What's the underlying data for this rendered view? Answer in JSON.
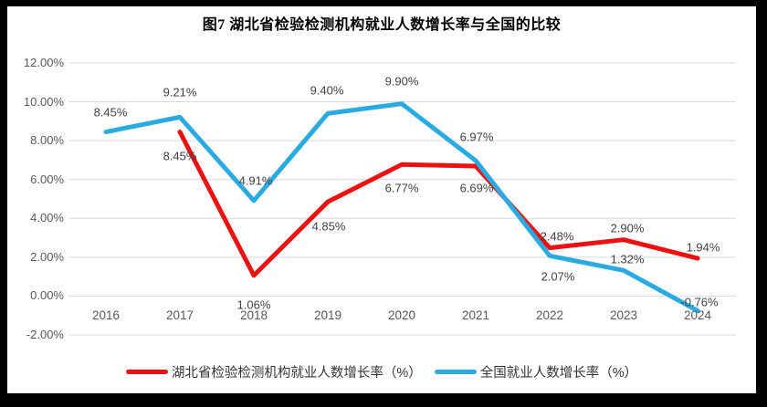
{
  "chart_data": {
    "type": "line",
    "title": "图7 湖北省检验检测机构就业人数增长率与全国的比较",
    "categories": [
      "2016",
      "2017",
      "2018",
      "2019",
      "2020",
      "2021",
      "2022",
      "2023",
      "2024"
    ],
    "series": [
      {
        "name": "湖北省检验检测机构就业人数增长率（%）",
        "color": "#ee1111",
        "values": [
          null,
          8.45,
          1.06,
          4.85,
          6.77,
          6.69,
          2.48,
          2.9,
          1.94
        ]
      },
      {
        "name": "全国就业人数增长率（%）",
        "color": "#29abe2",
        "values": [
          8.45,
          9.21,
          4.91,
          9.4,
          9.9,
          6.97,
          2.07,
          1.32,
          -0.76
        ]
      }
    ],
    "y_ticks": [
      12,
      10,
      8,
      6,
      4,
      2,
      0,
      -2
    ],
    "y_tick_labels": [
      "12.00%",
      "10.00%",
      "8.00%",
      "6.00%",
      "4.00%",
      "2.00%",
      "0.00%",
      "-2.00%"
    ],
    "ylim": [
      -2,
      12
    ],
    "grid": "horizontal",
    "gridline_color": "#d9d9d9",
    "label_color": "#404040",
    "axis_label_color": "#595959",
    "data_labels": true,
    "legend_position": "bottom"
  }
}
